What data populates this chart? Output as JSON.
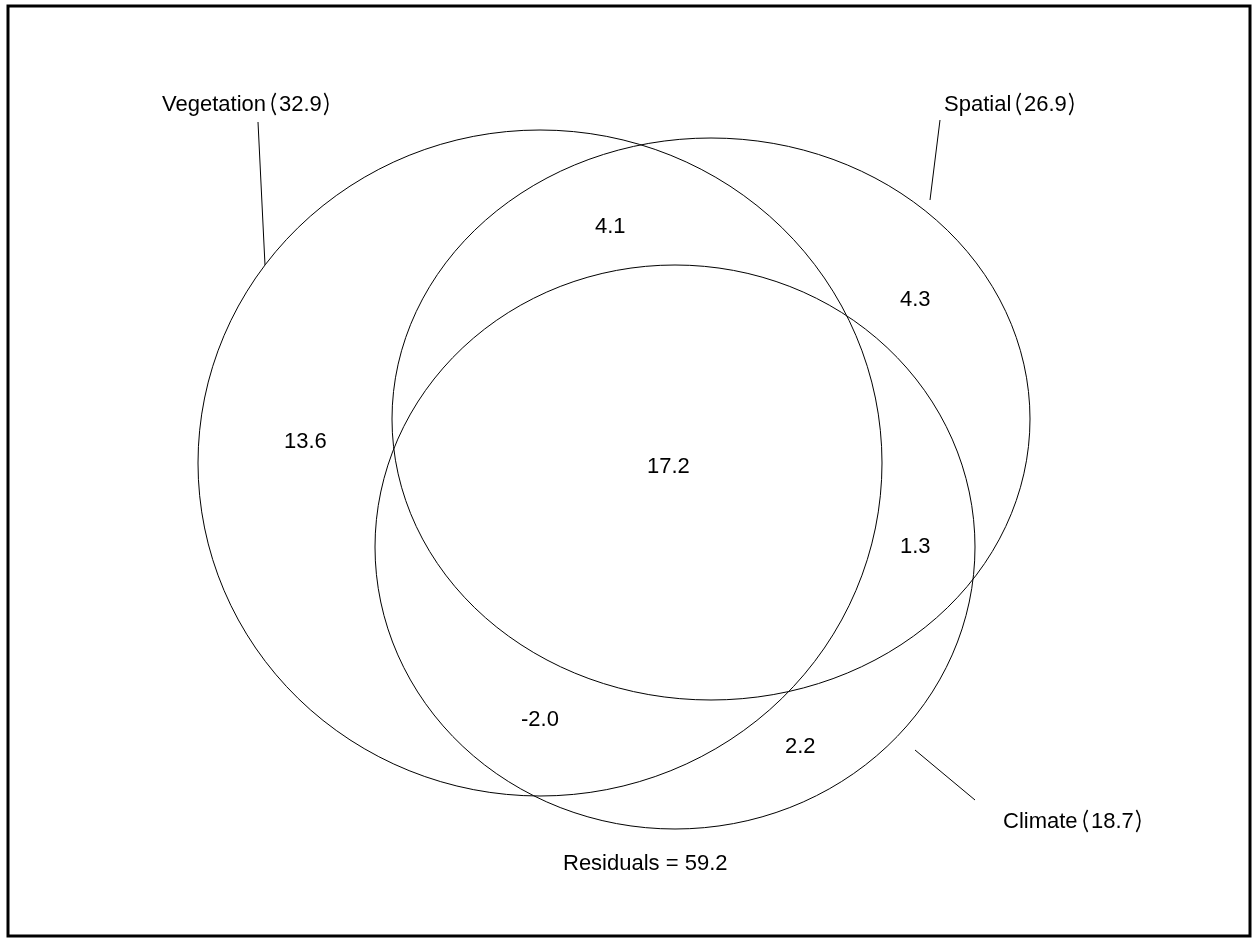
{
  "chart_data": {
    "type": "other",
    "categories": [
      "Vegetation",
      "Spatial",
      "Climate"
    ],
    "values": [
      32.9,
      26.9,
      18.7
    ],
    "data_labels": true,
    "annotations": [
      "13.6",
      "4.1",
      "4.3",
      "17.2",
      "1.3",
      "-2.0",
      "2.2",
      "Residuals = 59.2"
    ]
  }
}
